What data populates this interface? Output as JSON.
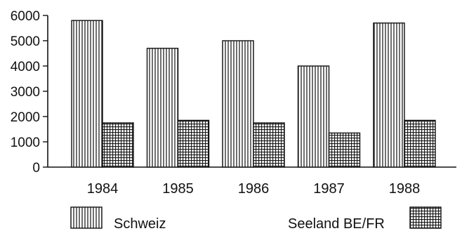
{
  "chart_data": {
    "type": "bar",
    "categories": [
      "1984",
      "1985",
      "1986",
      "1987",
      "1988"
    ],
    "series": [
      {
        "name": "Schweiz",
        "values": [
          5800,
          4700,
          5000,
          4000,
          5700
        ],
        "pattern": "vertical-stripes"
      },
      {
        "name": "Seeland BE/FR",
        "values": [
          1750,
          1850,
          1750,
          1350,
          1850
        ],
        "pattern": "grid"
      }
    ],
    "y_ticks": [
      "0",
      "1000",
      "2000",
      "3000",
      "4000",
      "5000",
      "6000"
    ],
    "ylim": [
      0,
      6000
    ],
    "title": "",
    "xlabel": "",
    "ylabel": "",
    "legend_position": "bottom",
    "grid": false,
    "colors": {
      "ink": "#111111",
      "background": "#ffffff"
    }
  },
  "legend": {
    "schweiz_label": "Schweiz",
    "seeland_label": "Seeland BE/FR"
  }
}
